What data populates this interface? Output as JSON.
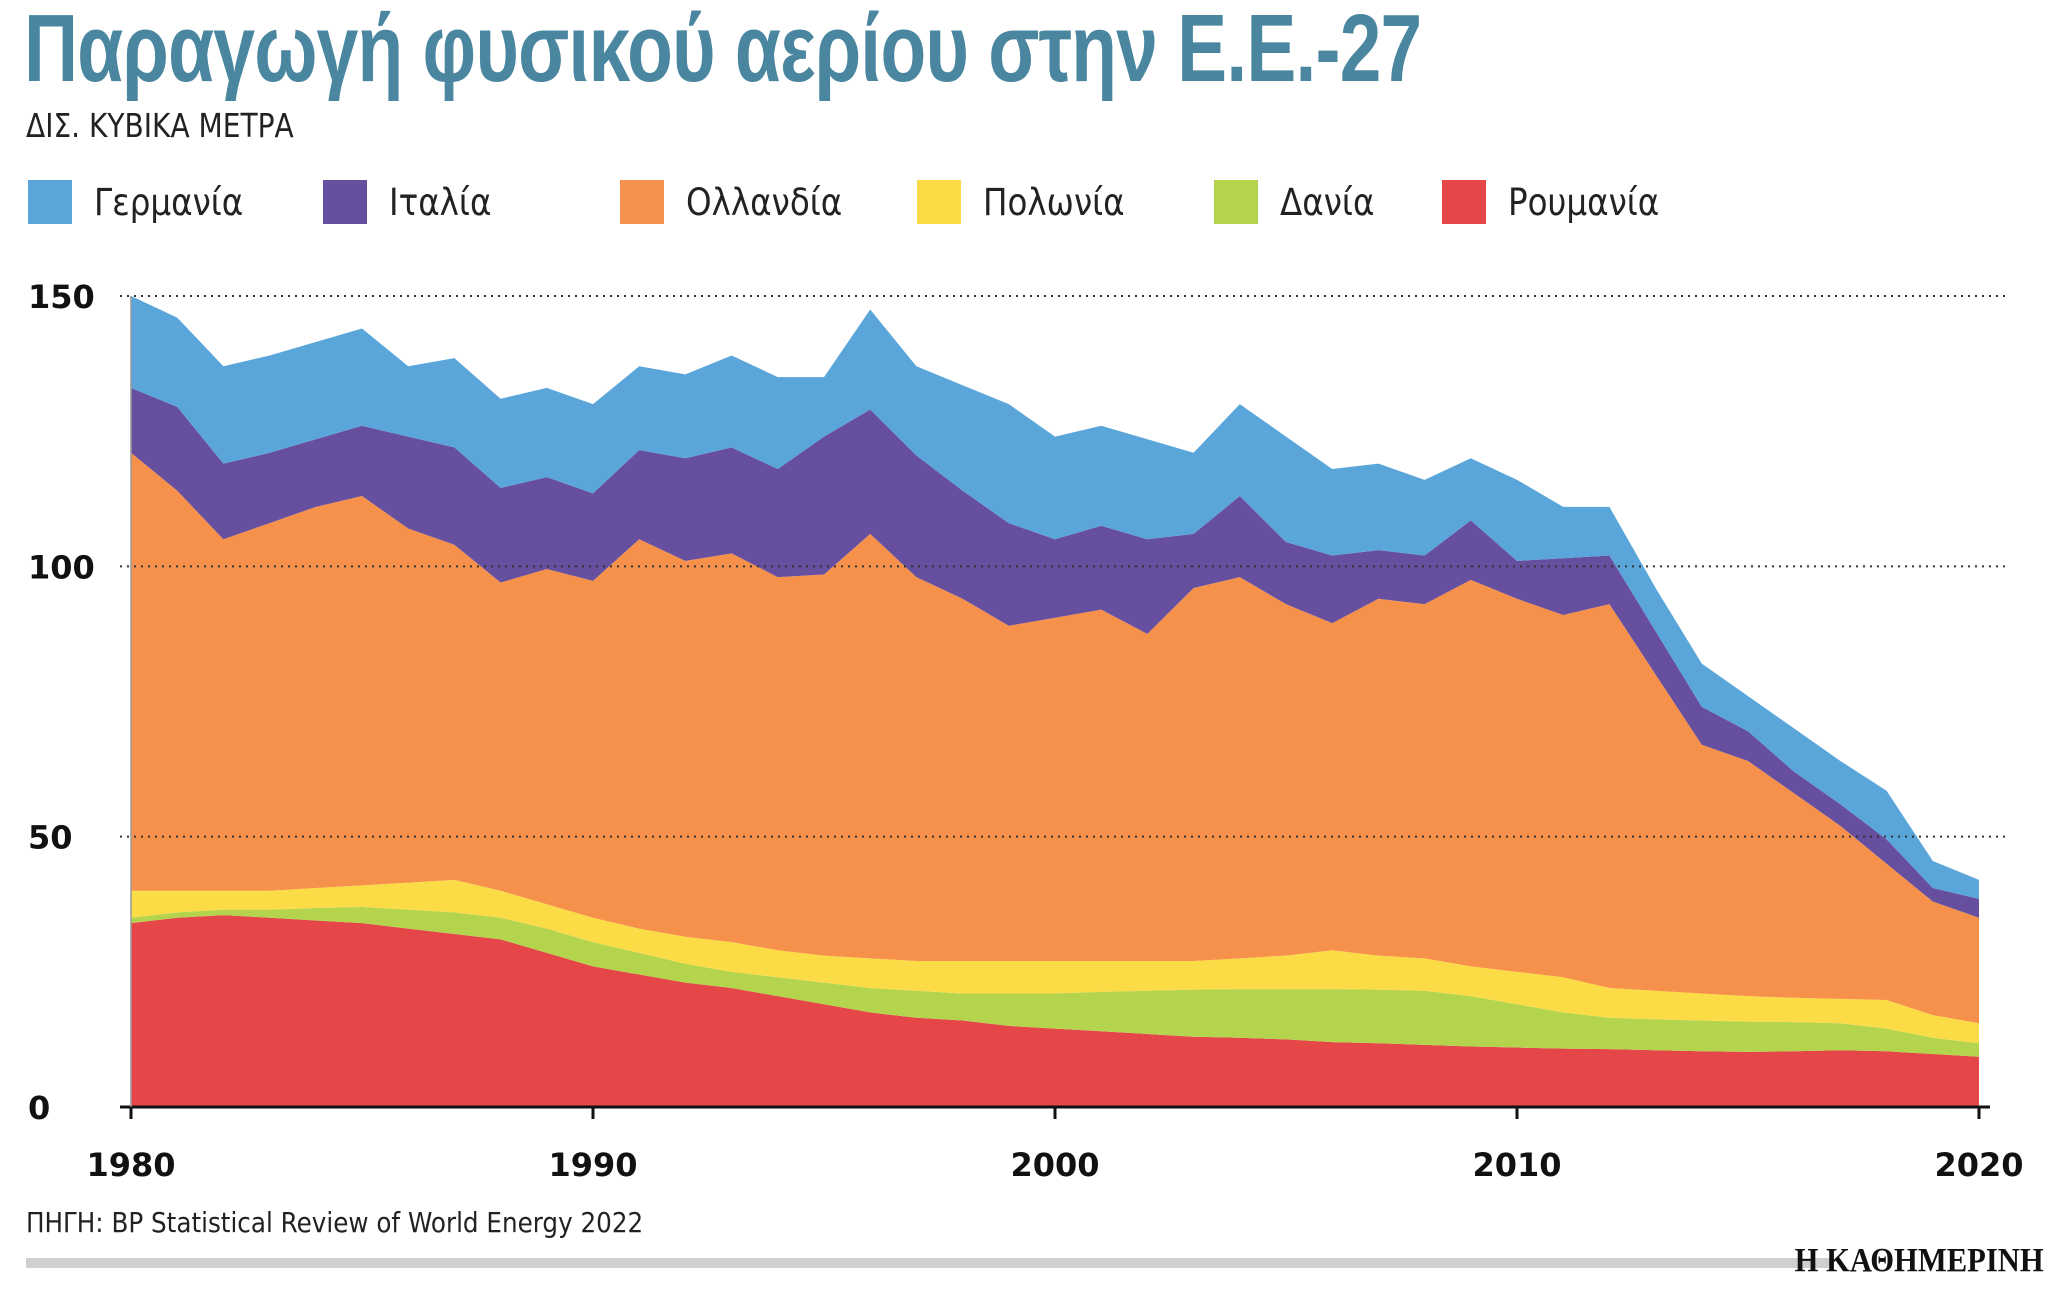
{
  "chart_data": {
    "type": "area",
    "stacked": true,
    "title": "Παραγωγή φυσικού αερίου στην Ε.Ε.-27",
    "subtitle": "ΔΙΣ. ΚΥΒΙΚΑ ΜΕΤΡΑ",
    "xlabel": "",
    "ylabel": "",
    "xlim": [
      1980,
      2020
    ],
    "ylim": [
      0,
      150
    ],
    "x_ticks": [
      "1980",
      "1990",
      "2000",
      "2010",
      "2020"
    ],
    "y_ticks": [
      "0",
      "50",
      "100",
      "150"
    ],
    "grid": "horizontal dotted",
    "legend_position": "top",
    "x": [
      1980,
      1981,
      1982,
      1983,
      1984,
      1985,
      1986,
      1987,
      1988,
      1989,
      1990,
      1991,
      1992,
      1993,
      1994,
      1995,
      1996,
      1997,
      1998,
      1999,
      2000,
      2001,
      2002,
      2003,
      2004,
      2005,
      2006,
      2007,
      2008,
      2009,
      2010,
      2011,
      2012,
      2013,
      2014,
      2015,
      2016,
      2017,
      2018,
      2019,
      2020
    ],
    "series": [
      {
        "name": "Ρουμανία",
        "color": "#e54648",
        "values": [
          34,
          35,
          35.5,
          35,
          34.5,
          34,
          33,
          32,
          31,
          28.5,
          26,
          24.5,
          23,
          22,
          20.5,
          19,
          17.5,
          16.5,
          16,
          15,
          14.5,
          14,
          13.5,
          13,
          12.8,
          12.5,
          12,
          11.8,
          11.5,
          11.2,
          11,
          10.8,
          10.7,
          10.5,
          10.3,
          10.2,
          10.3,
          10.5,
          10.3,
          9.8,
          9.3
        ]
      },
      {
        "name": "Δανία",
        "color": "#b5d44e",
        "values": [
          1,
          1,
          1,
          1.5,
          2.3,
          3,
          3.5,
          4,
          4,
          4.5,
          4.5,
          4,
          3.5,
          3,
          3.5,
          4,
          4.5,
          5,
          5,
          6,
          6.5,
          7.3,
          8,
          8.7,
          9,
          9.3,
          9.8,
          9.9,
          10,
          9.3,
          8,
          6.7,
          5.8,
          5.7,
          5.7,
          5.6,
          5.4,
          5,
          4.2,
          3,
          2.5
        ]
      },
      {
        "name": "Πολωνία",
        "color": "#fcdc46",
        "values": [
          5,
          4,
          3.5,
          3.5,
          3.7,
          4,
          5,
          6,
          5,
          4.5,
          4.5,
          4.5,
          5,
          5.5,
          5,
          5,
          5.5,
          5.5,
          6,
          6,
          6,
          5.7,
          5.5,
          5.3,
          5.7,
          6.2,
          7.2,
          6.3,
          6,
          5.5,
          6,
          6.5,
          5.5,
          5.3,
          5,
          4.7,
          4.5,
          4.5,
          5.3,
          4.2,
          3.7
        ]
      },
      {
        "name": "Ολλανδία",
        "color": "#f5914b",
        "values": [
          81,
          74,
          65,
          68,
          70.5,
          72,
          65.5,
          62,
          57,
          62,
          62.3,
          72,
          69.5,
          71.9,
          69,
          70.5,
          78.5,
          71,
          67,
          62,
          63.5,
          65,
          60.5,
          69,
          70.5,
          65,
          60.5,
          66,
          65.5,
          71.5,
          69,
          67,
          71,
          58.5,
          46,
          43.5,
          37.8,
          32,
          25.2,
          21,
          19.5
        ]
      },
      {
        "name": "Ιταλία",
        "color": "#674fa0",
        "values": [
          12,
          15.5,
          14,
          13,
          12.5,
          13,
          17,
          18,
          17.5,
          17,
          16.2,
          16.5,
          19,
          19.6,
          20,
          25.5,
          23,
          22.5,
          20,
          19,
          14.5,
          15.5,
          17.5,
          10,
          15,
          11.5,
          12.5,
          9,
          9,
          11,
          7,
          10.5,
          9,
          8,
          7,
          5.5,
          4,
          4,
          4.5,
          2.5,
          3.5
        ]
      },
      {
        "name": "Γερμανία",
        "color": "#5aa6da",
        "values": [
          17,
          16.5,
          18,
          18,
          18,
          18,
          13,
          16.5,
          16.5,
          16.5,
          16.5,
          15.5,
          15.5,
          17,
          17,
          11,
          18.5,
          16.5,
          19.5,
          22,
          19,
          18.5,
          18.5,
          15,
          17,
          19.5,
          16,
          16,
          14,
          11.5,
          15,
          9.5,
          9,
          8,
          8,
          6.5,
          8,
          8,
          9,
          5,
          3.5
        ]
      }
    ],
    "legend_order": [
      "Γερμανία",
      "Ιταλία",
      "Ολλανδία",
      "Πολωνία",
      "Δανία",
      "Ρουμανία"
    ]
  },
  "source": "ΠΗΓΗ: BP Statistical Review of World Energy 2022",
  "logo": "Η ΚΑΘΗΜΕΡΙΝΗ",
  "colors": {
    "title": "#4a86a0"
  }
}
